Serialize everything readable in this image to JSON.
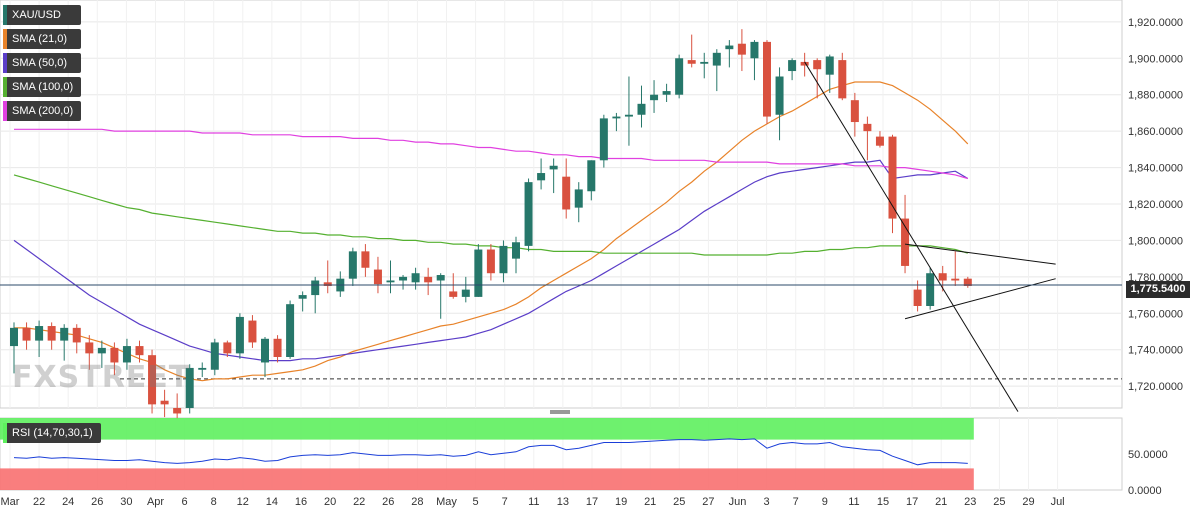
{
  "chart_data": [
    {
      "type": "candlestick",
      "symbol": "XAU/USD",
      "last_price_label": "1,775.5400",
      "last_price": 1775.54,
      "ylim": [
        1708,
        1932
      ],
      "y_ticks": [
        "1,920.0000",
        "1,900.0000",
        "1,880.0000",
        "1,860.0000",
        "1,840.0000",
        "1,820.0000",
        "1,800.0000",
        "1,780.0000",
        "1,760.0000",
        "1,740.0000",
        "1,720.0000"
      ],
      "y_tick_values": [
        1920,
        1900,
        1880,
        1860,
        1840,
        1820,
        1800,
        1780,
        1760,
        1740,
        1720
      ],
      "x_labels": [
        "Mar",
        "22",
        "24",
        "26",
        "30",
        "Apr",
        "6",
        "8",
        "12",
        "14",
        "16",
        "20",
        "22",
        "26",
        "28",
        "May",
        "5",
        "7",
        "11",
        "13",
        "17",
        "19",
        "21",
        "25",
        "27",
        "Jun",
        "3",
        "7",
        "9",
        "11",
        "15",
        "17",
        "21",
        "23",
        "25",
        "29",
        "Jul"
      ],
      "candles": [
        {
          "o": 1742,
          "h": 1755,
          "l": 1727,
          "c": 1752
        },
        {
          "o": 1752,
          "h": 1755,
          "l": 1740,
          "c": 1745
        },
        {
          "o": 1745,
          "h": 1756,
          "l": 1736,
          "c": 1753
        },
        {
          "o": 1753,
          "h": 1755,
          "l": 1740,
          "c": 1745
        },
        {
          "o": 1745,
          "h": 1754,
          "l": 1734,
          "c": 1752
        },
        {
          "o": 1752,
          "h": 1754,
          "l": 1738,
          "c": 1744
        },
        {
          "o": 1744,
          "h": 1748,
          "l": 1729,
          "c": 1738
        },
        {
          "o": 1738,
          "h": 1745,
          "l": 1730,
          "c": 1741
        },
        {
          "o": 1741,
          "h": 1744,
          "l": 1726,
          "c": 1733
        },
        {
          "o": 1733,
          "h": 1746,
          "l": 1729,
          "c": 1742
        },
        {
          "o": 1742,
          "h": 1745,
          "l": 1733,
          "c": 1737
        },
        {
          "o": 1737,
          "h": 1740,
          "l": 1705,
          "c": 1710
        },
        {
          "o": 1712,
          "h": 1718,
          "l": 1703,
          "c": 1710
        },
        {
          "o": 1708,
          "h": 1716,
          "l": 1702,
          "c": 1705
        },
        {
          "o": 1708,
          "h": 1732,
          "l": 1705,
          "c": 1730
        },
        {
          "o": 1729,
          "h": 1733,
          "l": 1725,
          "c": 1730
        },
        {
          "o": 1729,
          "h": 1746,
          "l": 1726,
          "c": 1744
        },
        {
          "o": 1744,
          "h": 1745,
          "l": 1736,
          "c": 1738
        },
        {
          "o": 1738,
          "h": 1760,
          "l": 1735,
          "c": 1758
        },
        {
          "o": 1756,
          "h": 1759,
          "l": 1741,
          "c": 1744
        },
        {
          "o": 1733,
          "h": 1747,
          "l": 1725,
          "c": 1746
        },
        {
          "o": 1746,
          "h": 1748,
          "l": 1733,
          "c": 1736
        },
        {
          "o": 1736,
          "h": 1767,
          "l": 1735,
          "c": 1765
        },
        {
          "o": 1768,
          "h": 1772,
          "l": 1761,
          "c": 1770
        },
        {
          "o": 1770,
          "h": 1780,
          "l": 1760,
          "c": 1778
        },
        {
          "o": 1777,
          "h": 1789,
          "l": 1771,
          "c": 1775
        },
        {
          "o": 1772,
          "h": 1783,
          "l": 1769,
          "c": 1779
        },
        {
          "o": 1779,
          "h": 1796,
          "l": 1775,
          "c": 1794
        },
        {
          "o": 1794,
          "h": 1798,
          "l": 1780,
          "c": 1785
        },
        {
          "o": 1784,
          "h": 1791,
          "l": 1771,
          "c": 1776
        },
        {
          "o": 1777,
          "h": 1789,
          "l": 1771,
          "c": 1778
        },
        {
          "o": 1778,
          "h": 1781,
          "l": 1773,
          "c": 1780
        },
        {
          "o": 1777,
          "h": 1785,
          "l": 1773,
          "c": 1782
        },
        {
          "o": 1780,
          "h": 1785,
          "l": 1770,
          "c": 1777
        },
        {
          "o": 1778,
          "h": 1782,
          "l": 1757,
          "c": 1781
        },
        {
          "o": 1772,
          "h": 1782,
          "l": 1768,
          "c": 1769
        },
        {
          "o": 1769,
          "h": 1780,
          "l": 1766,
          "c": 1773
        },
        {
          "o": 1769,
          "h": 1798,
          "l": 1769,
          "c": 1795
        },
        {
          "o": 1795,
          "h": 1798,
          "l": 1778,
          "c": 1782
        },
        {
          "o": 1782,
          "h": 1800,
          "l": 1777,
          "c": 1797
        },
        {
          "o": 1790,
          "h": 1802,
          "l": 1782,
          "c": 1799
        },
        {
          "o": 1797,
          "h": 1834,
          "l": 1794,
          "c": 1832
        },
        {
          "o": 1833,
          "h": 1845,
          "l": 1828,
          "c": 1837
        },
        {
          "o": 1839,
          "h": 1845,
          "l": 1826,
          "c": 1841
        },
        {
          "o": 1835,
          "h": 1845,
          "l": 1812,
          "c": 1817
        },
        {
          "o": 1818,
          "h": 1832,
          "l": 1810,
          "c": 1828
        },
        {
          "o": 1827,
          "h": 1844,
          "l": 1822,
          "c": 1844
        },
        {
          "o": 1844,
          "h": 1869,
          "l": 1840,
          "c": 1867
        },
        {
          "o": 1867,
          "h": 1870,
          "l": 1860,
          "c": 1868
        },
        {
          "o": 1868,
          "h": 1890,
          "l": 1852,
          "c": 1869
        },
        {
          "o": 1869,
          "h": 1885,
          "l": 1862,
          "c": 1875
        },
        {
          "o": 1877,
          "h": 1888,
          "l": 1870,
          "c": 1880
        },
        {
          "o": 1880,
          "h": 1886,
          "l": 1876,
          "c": 1882
        },
        {
          "o": 1880,
          "h": 1902,
          "l": 1878,
          "c": 1900
        },
        {
          "o": 1899,
          "h": 1913,
          "l": 1895,
          "c": 1897
        },
        {
          "o": 1897,
          "h": 1903,
          "l": 1889,
          "c": 1898
        },
        {
          "o": 1896,
          "h": 1905,
          "l": 1882,
          "c": 1903
        },
        {
          "o": 1905,
          "h": 1910,
          "l": 1895,
          "c": 1907
        },
        {
          "o": 1908,
          "h": 1916,
          "l": 1893,
          "c": 1902
        },
        {
          "o": 1900,
          "h": 1910,
          "l": 1888,
          "c": 1909
        },
        {
          "o": 1909,
          "h": 1910,
          "l": 1864,
          "c": 1868
        },
        {
          "o": 1869,
          "h": 1895,
          "l": 1855,
          "c": 1890
        },
        {
          "o": 1893,
          "h": 1900,
          "l": 1888,
          "c": 1899
        },
        {
          "o": 1898,
          "h": 1903,
          "l": 1890,
          "c": 1896
        },
        {
          "o": 1899,
          "h": 1900,
          "l": 1878,
          "c": 1894
        },
        {
          "o": 1891,
          "h": 1902,
          "l": 1881,
          "c": 1901
        },
        {
          "o": 1899,
          "h": 1903,
          "l": 1877,
          "c": 1878
        },
        {
          "o": 1877,
          "h": 1881,
          "l": 1857,
          "c": 1865
        },
        {
          "o": 1864,
          "h": 1868,
          "l": 1844,
          "c": 1860
        },
        {
          "o": 1857,
          "h": 1860,
          "l": 1851,
          "c": 1852
        },
        {
          "o": 1857,
          "h": 1858,
          "l": 1804,
          "c": 1812
        },
        {
          "o": 1812,
          "h": 1825,
          "l": 1782,
          "c": 1786
        },
        {
          "o": 1773,
          "h": 1778,
          "l": 1761,
          "c": 1764
        },
        {
          "o": 1764,
          "h": 1785,
          "l": 1762,
          "c": 1782
        },
        {
          "o": 1782,
          "h": 1786,
          "l": 1772,
          "c": 1778
        },
        {
          "o": 1779,
          "h": 1794,
          "l": 1775,
          "c": 1778
        },
        {
          "o": 1779,
          "h": 1780,
          "l": 1774,
          "c": 1775
        }
      ],
      "overlays": [
        {
          "name": "SMA (21,0)",
          "color": "#e8832a",
          "values": [
            1752,
            1752,
            1751,
            1750,
            1749,
            1748,
            1746,
            1744,
            1741,
            1738,
            1735,
            1733,
            1729,
            1726,
            1724,
            1723,
            1724,
            1724,
            1725,
            1726,
            1726,
            1727,
            1728,
            1729,
            1731,
            1734,
            1736,
            1739,
            1741,
            1743,
            1745,
            1747,
            1749,
            1751,
            1753,
            1754,
            1756,
            1758,
            1760,
            1762,
            1765,
            1769,
            1774,
            1778,
            1782,
            1786,
            1790,
            1795,
            1801,
            1806,
            1811,
            1816,
            1821,
            1827,
            1832,
            1838,
            1843,
            1849,
            1855,
            1860,
            1864,
            1868,
            1871,
            1875,
            1879,
            1883,
            1885,
            1887,
            1887,
            1887,
            1885,
            1881,
            1877,
            1872,
            1866,
            1860,
            1853
          ]
        },
        {
          "name": "SMA (50,0)",
          "color": "#5b3ec8",
          "values": [
            1800,
            1795,
            1790,
            1785,
            1780,
            1775,
            1770,
            1766,
            1762,
            1758,
            1754,
            1751,
            1748,
            1745,
            1742,
            1740,
            1738,
            1737,
            1736,
            1735,
            1734,
            1734,
            1734,
            1735,
            1735,
            1736,
            1737,
            1738,
            1739,
            1740,
            1741,
            1742,
            1743,
            1744,
            1745,
            1746,
            1747,
            1749,
            1751,
            1754,
            1757,
            1760,
            1764,
            1768,
            1772,
            1775,
            1778,
            1782,
            1786,
            1790,
            1794,
            1798,
            1802,
            1806,
            1811,
            1816,
            1820,
            1824,
            1828,
            1832,
            1835,
            1837,
            1838,
            1839,
            1840,
            1841,
            1842,
            1843,
            1843,
            1844,
            1834,
            1835,
            1836,
            1836,
            1837,
            1838,
            1834
          ]
        },
        {
          "name": "SMA (100,0)",
          "color": "#55b030",
          "values": [
            1836,
            1834,
            1832,
            1830,
            1828,
            1826,
            1824,
            1822,
            1820,
            1818,
            1817,
            1815,
            1814,
            1813,
            1812,
            1811,
            1810,
            1809,
            1808,
            1807,
            1806,
            1805,
            1805,
            1804,
            1804,
            1803,
            1803,
            1802,
            1802,
            1801,
            1801,
            1800,
            1800,
            1799,
            1799,
            1798,
            1798,
            1797,
            1797,
            1796,
            1796,
            1795,
            1795,
            1794,
            1794,
            1794,
            1794,
            1793,
            1793,
            1793,
            1793,
            1793,
            1793,
            1793,
            1793,
            1792,
            1792,
            1792,
            1792,
            1792,
            1792,
            1793,
            1793,
            1794,
            1794,
            1795,
            1795,
            1796,
            1796,
            1797,
            1797,
            1797,
            1797,
            1797,
            1796,
            1795,
            1793
          ]
        },
        {
          "name": "SMA (200,0)",
          "color": "#e040e0",
          "values": [
            1861,
            1861,
            1861,
            1861,
            1861,
            1861,
            1861,
            1861,
            1860,
            1860,
            1860,
            1860,
            1860,
            1860,
            1860,
            1859,
            1859,
            1859,
            1859,
            1858,
            1858,
            1858,
            1858,
            1857,
            1857,
            1857,
            1857,
            1856,
            1856,
            1856,
            1855,
            1855,
            1854,
            1854,
            1853,
            1853,
            1852,
            1851,
            1851,
            1850,
            1849,
            1849,
            1848,
            1847,
            1847,
            1846,
            1846,
            1845,
            1845,
            1845,
            1845,
            1844,
            1844,
            1844,
            1844,
            1844,
            1843,
            1843,
            1843,
            1843,
            1843,
            1842,
            1842,
            1842,
            1842,
            1842,
            1842,
            1841,
            1841,
            1841,
            1840,
            1840,
            1839,
            1838,
            1837,
            1836,
            1834
          ]
        }
      ],
      "horizontal_line": 1724,
      "trendlines": [
        {
          "from": [
            63,
            1898
          ],
          "to": [
            80,
            1706
          ]
        },
        {
          "from": [
            71,
            1798
          ],
          "to": [
            83,
            1787
          ]
        },
        {
          "from": [
            71,
            1757
          ],
          "to": [
            83,
            1779
          ]
        }
      ]
    },
    {
      "type": "line",
      "label": "RSI (14,70,30,1)",
      "ylim": [
        0,
        100
      ],
      "y_ticks": [
        "50.0000",
        "0.0000"
      ],
      "y_tick_values": [
        50,
        0
      ],
      "overbought_color": "#5ef05e",
      "oversold_color": "#f87070",
      "line_color": "#1a3ed8",
      "values": [
        45,
        44,
        46,
        44,
        45,
        44,
        43,
        42,
        41,
        41,
        42,
        40,
        38,
        37,
        38,
        40,
        43,
        42,
        45,
        43,
        40,
        41,
        46,
        48,
        49,
        48,
        49,
        52,
        50,
        48,
        48,
        49,
        49,
        48,
        49,
        47,
        48,
        53,
        49,
        51,
        53,
        60,
        62,
        62,
        56,
        58,
        62,
        66,
        66,
        66,
        67,
        68,
        69,
        70,
        70,
        69,
        70,
        71,
        70,
        71,
        58,
        64,
        66,
        64,
        64,
        66,
        60,
        58,
        56,
        55,
        47,
        41,
        35,
        38,
        38,
        38,
        37
      ]
    }
  ],
  "legend": [
    {
      "label": "XAU/USD",
      "color": "#26776a"
    },
    {
      "label": "SMA (21,0)",
      "color": "#e8832a"
    },
    {
      "label": "SMA (50,0)",
      "color": "#5b3ec8"
    },
    {
      "label": "SMA (100,0)",
      "color": "#55b030"
    },
    {
      "label": "SMA (200,0)",
      "color": "#e040e0"
    }
  ],
  "rsi_label": "RSI (14,70,30,1)",
  "rsi_label_color": "#5ef05e",
  "colors": {
    "up": "#26776a",
    "down": "#d9513f",
    "grid": "#e8e8e8",
    "axis_text": "#333333"
  },
  "watermark": "FXSTREET"
}
